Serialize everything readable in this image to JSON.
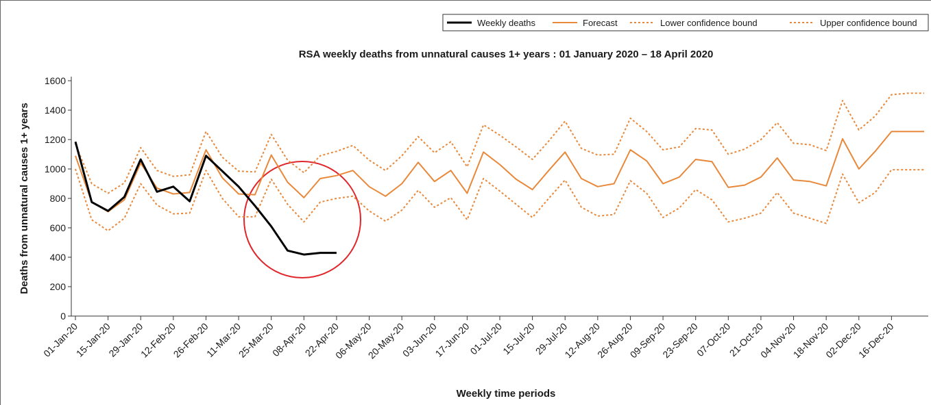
{
  "chart_data": {
    "type": "line",
    "title": "RSA weekly deaths from unnatural causes 1+ years : 01 January 2020 – 18 April 2020",
    "x_label": "Weekly time periods",
    "y_label": "Deaths from unnatural causes 1+ years",
    "categories": [
      "01-Jan-20",
      null,
      "15-Jan-20",
      null,
      "29-Jan-20",
      null,
      "12-Feb-20",
      null,
      "26-Feb-20",
      null,
      "11-Mar-20",
      null,
      "25-Mar-20",
      null,
      "08-Apr-20",
      null,
      "22-Apr-20",
      null,
      "06-May-20",
      null,
      "20-May-20",
      null,
      "03-Jun-20",
      null,
      "17-Jun-20",
      null,
      "01-Jul-20",
      null,
      "15-Jul-20",
      null,
      "29-Jul-20",
      null,
      "12-Aug-20",
      null,
      "26-Aug-20",
      null,
      "09-Sep-20",
      null,
      "23-Sep-20",
      null,
      "07-Oct-20",
      null,
      "21-Oct-20",
      null,
      "04-Nov-20",
      null,
      "18-Nov-20",
      null,
      "02-Dec-20",
      null,
      "16-Dec-20",
      null,
      null
    ],
    "series": [
      {
        "name": "Weekly deaths",
        "color": "#000000",
        "style": "solid",
        "values": [
          1185,
          775,
          715,
          810,
          1065,
          845,
          880,
          780,
          1090,
          985,
          880,
          750,
          610,
          445,
          418,
          430,
          430,
          null,
          null,
          null,
          null,
          null,
          null,
          null,
          null,
          null,
          null,
          null,
          null,
          null,
          null,
          null,
          null,
          null,
          null,
          null,
          null,
          null,
          null,
          null,
          null,
          null,
          null,
          null,
          null,
          null,
          null,
          null,
          null,
          null,
          null,
          null,
          null
        ]
      },
      {
        "name": "Forecast",
        "color": "#e8883a",
        "style": "solid",
        "values": [
          1090,
          775,
          710,
          790,
          1040,
          870,
          830,
          840,
          1130,
          940,
          830,
          825,
          1095,
          910,
          805,
          935,
          955,
          990,
          880,
          815,
          900,
          1045,
          915,
          990,
          835,
          1115,
          1030,
          930,
          860,
          990,
          1115,
          935,
          880,
          900,
          1130,
          1055,
          900,
          945,
          1065,
          1050,
          875,
          890,
          945,
          1075,
          925,
          915,
          885,
          1205,
          1000,
          1120,
          1255,
          1255,
          1255
        ]
      },
      {
        "name": "Lower confidence bound",
        "color": "#e8883a",
        "style": "dotted",
        "values": [
          1000,
          655,
          580,
          665,
          900,
          755,
          695,
          700,
          990,
          800,
          675,
          675,
          930,
          760,
          640,
          775,
          800,
          815,
          715,
          645,
          720,
          855,
          740,
          805,
          655,
          935,
          850,
          760,
          670,
          800,
          925,
          740,
          680,
          690,
          920,
          835,
          670,
          735,
          860,
          790,
          640,
          665,
          700,
          840,
          700,
          665,
          630,
          965,
          770,
          840,
          995,
          995,
          995
        ]
      },
      {
        "name": "Upper confidence bound",
        "color": "#e8883a",
        "style": "dotted",
        "values": [
          1170,
          900,
          835,
          905,
          1145,
          990,
          950,
          960,
          1255,
          1080,
          985,
          980,
          1235,
          1060,
          975,
          1090,
          1120,
          1160,
          1060,
          990,
          1090,
          1220,
          1110,
          1185,
          1015,
          1300,
          1230,
          1150,
          1065,
          1190,
          1325,
          1140,
          1095,
          1100,
          1345,
          1255,
          1130,
          1150,
          1275,
          1265,
          1100,
          1135,
          1200,
          1315,
          1175,
          1165,
          1125,
          1465,
          1265,
          1360,
          1505,
          1515,
          1515
        ]
      }
    ],
    "ylim": [
      0,
      1600
    ],
    "yticks": [
      0,
      200,
      400,
      600,
      800,
      1000,
      1200,
      1400,
      1600
    ],
    "legend": "top-right",
    "grid": false
  }
}
